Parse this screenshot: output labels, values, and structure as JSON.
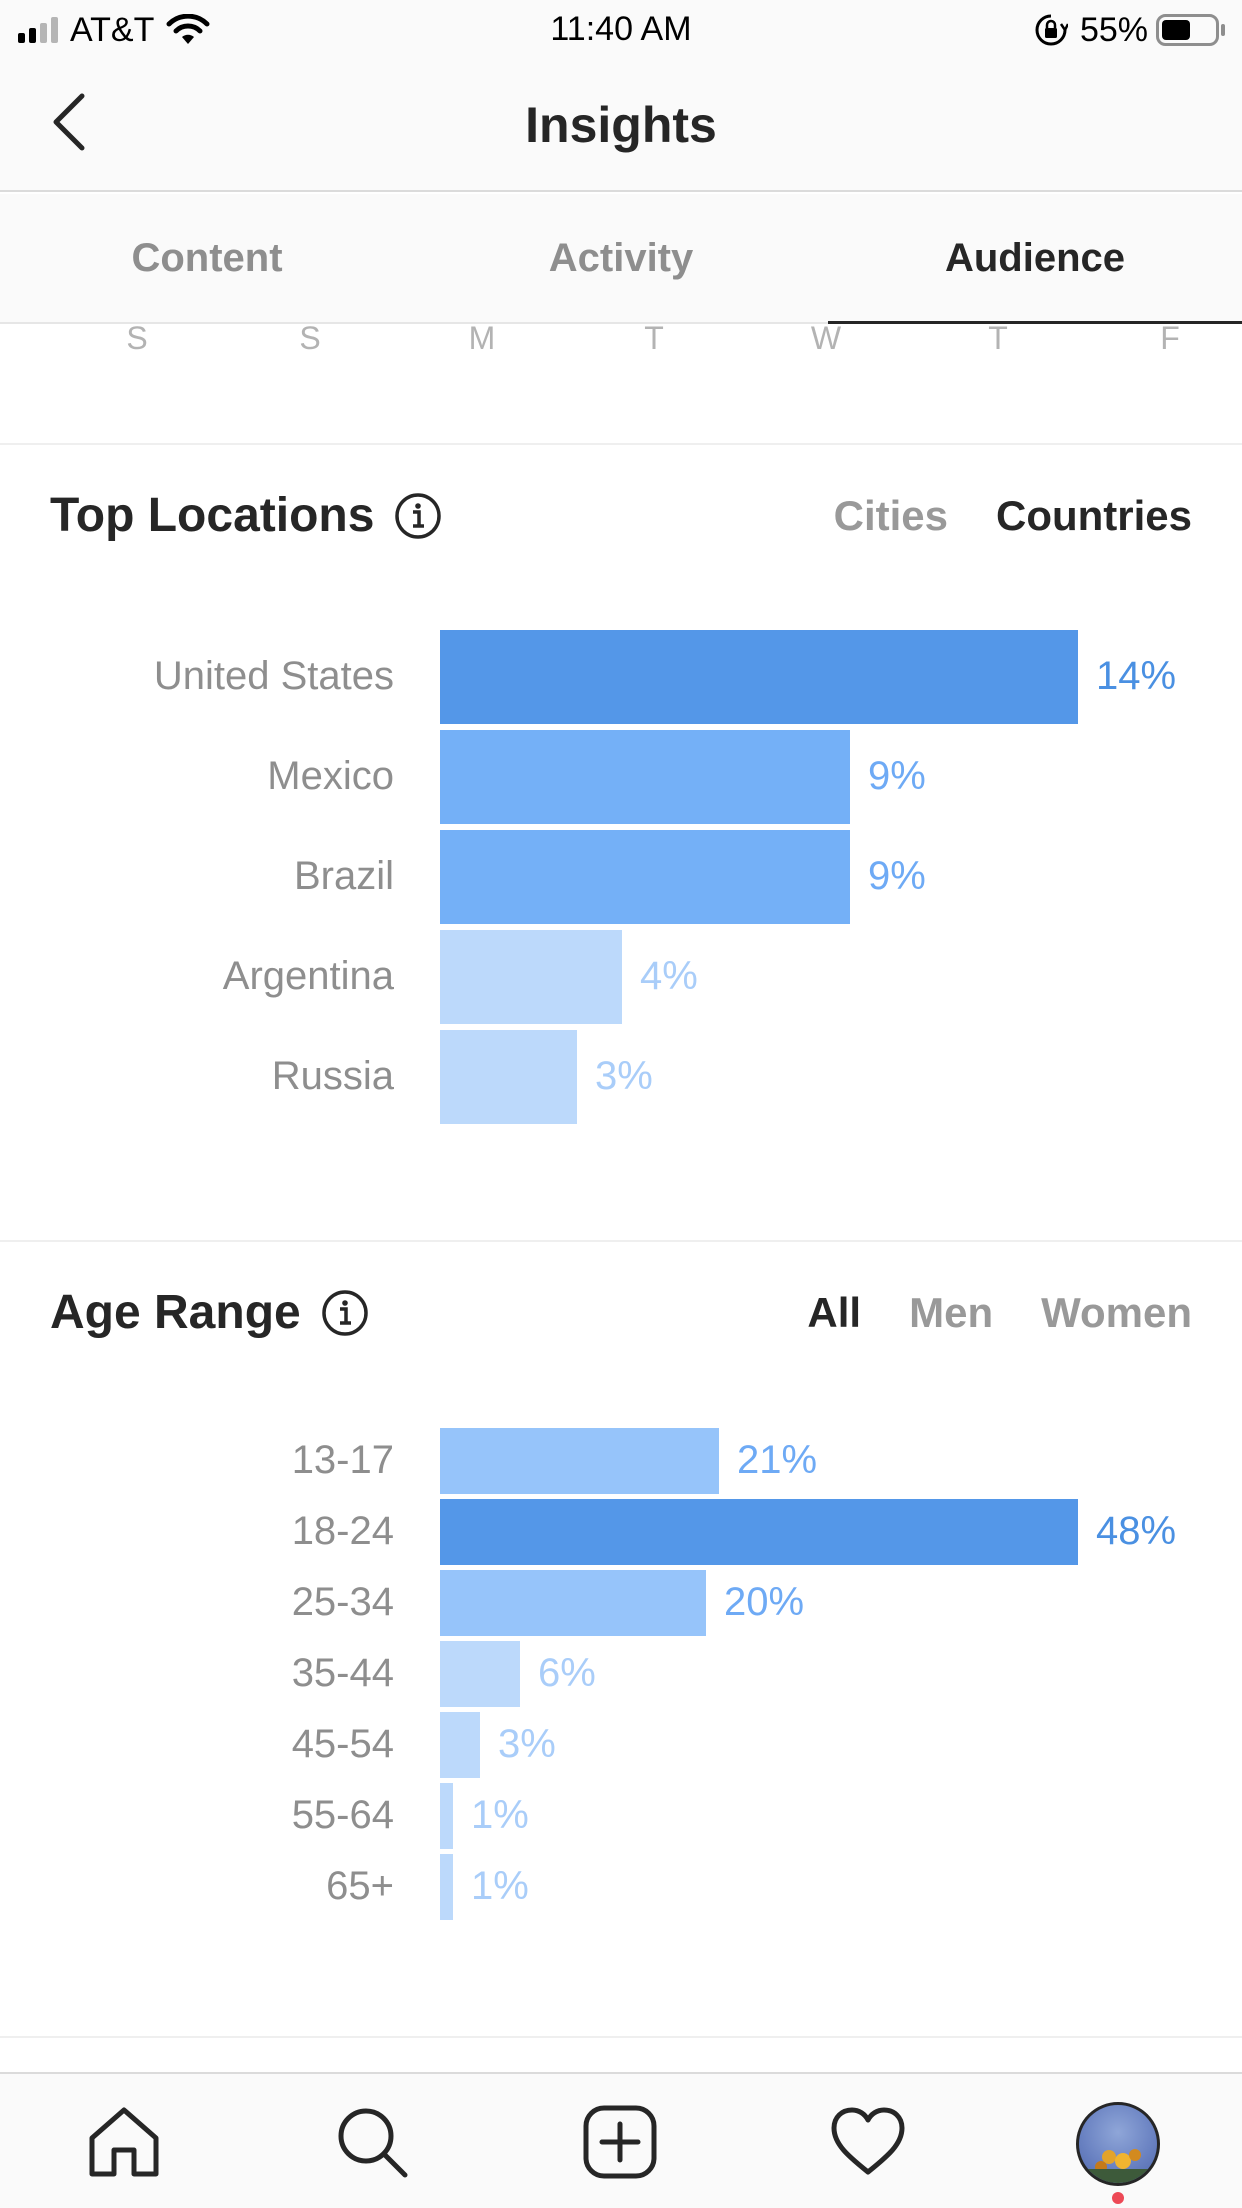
{
  "status_bar": {
    "carrier": "AT&T",
    "time": "11:40 AM",
    "battery_percent": "55%",
    "battery_level": 0.55,
    "signal_bars": 2
  },
  "header": {
    "title": "Insights"
  },
  "tabs": [
    {
      "label": "Content",
      "active": false
    },
    {
      "label": "Activity",
      "active": false
    },
    {
      "label": "Audience",
      "active": true
    }
  ],
  "days": [
    "S",
    "S",
    "M",
    "T",
    "W",
    "T",
    "F"
  ],
  "top_locations": {
    "title": "Top Locations",
    "filters": [
      {
        "label": "Cities",
        "active": false
      },
      {
        "label": "Countries",
        "active": true
      }
    ]
  },
  "age_range": {
    "title": "Age Range",
    "filters": [
      {
        "label": "All",
        "active": true
      },
      {
        "label": "Men",
        "active": false
      },
      {
        "label": "Women",
        "active": false
      }
    ]
  },
  "colors": {
    "bar_dark": "#5497e8",
    "bar_mid": "#74b0f7",
    "bar_light_mid": "#96c4fa",
    "bar_light": "#bcd9fb",
    "label_dark": "#4a90e2",
    "label_mid": "#6eaaf5",
    "label_light": "#a9cdf9"
  },
  "chart_data": [
    {
      "type": "bar",
      "orientation": "horizontal",
      "title": "Top Locations",
      "categories": [
        "United States",
        "Mexico",
        "Brazil",
        "Argentina",
        "Russia"
      ],
      "values": [
        14,
        9,
        9,
        4,
        3
      ],
      "value_labels": [
        "14%",
        "9%",
        "9%",
        "4%",
        "3%"
      ],
      "xlim": [
        0,
        14
      ]
    },
    {
      "type": "bar",
      "orientation": "horizontal",
      "title": "Age Range",
      "categories": [
        "13-17",
        "18-24",
        "25-34",
        "35-44",
        "45-54",
        "55-64",
        "65+"
      ],
      "values": [
        21,
        48,
        20,
        6,
        3,
        1,
        1
      ],
      "value_labels": [
        "21%",
        "48%",
        "20%",
        "6%",
        "3%",
        "1%",
        "1%"
      ],
      "xlim": [
        0,
        48
      ]
    }
  ],
  "bottom_nav": [
    {
      "icon": "home-icon"
    },
    {
      "icon": "search-icon"
    },
    {
      "icon": "add-post-icon"
    },
    {
      "icon": "heart-icon"
    },
    {
      "icon": "profile-avatar"
    }
  ]
}
